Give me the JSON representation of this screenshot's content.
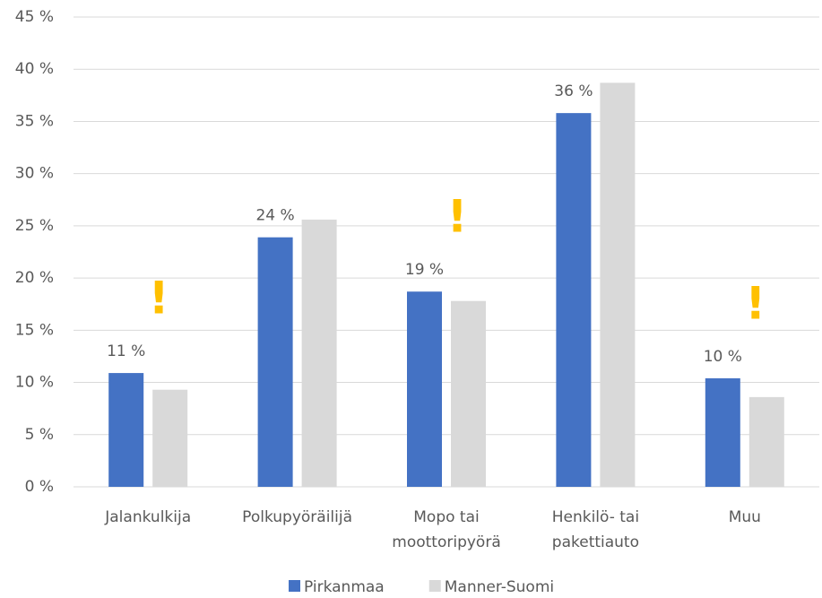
{
  "chart_data": {
    "type": "bar",
    "categories": [
      "Jalankulkija",
      "Polkupyöräilijä",
      "Mopo tai\nmoottoripyörä",
      "Henkilö- tai\npakettiauto",
      "Muu"
    ],
    "series": [
      {
        "name": "Pirkanmaa",
        "color": "#4472c4",
        "values": [
          10.9,
          23.9,
          18.7,
          35.8,
          10.4
        ],
        "value_labels": [
          "11 %",
          "24 %",
          "19 %",
          "36 %",
          "10 %"
        ]
      },
      {
        "name": "Manner-Suomi",
        "color": "#d9d9d9",
        "values": [
          9.3,
          25.6,
          17.8,
          38.7,
          8.6
        ]
      }
    ],
    "annotations": [
      "!",
      null,
      "!",
      null,
      "!"
    ],
    "annotation_color": "#ffc000",
    "ylim": [
      0,
      45
    ],
    "yticks": [
      {
        "value": 0,
        "label": "0 %"
      },
      {
        "value": 5,
        "label": "5 %"
      },
      {
        "value": 10,
        "label": "10 %"
      },
      {
        "value": 15,
        "label": "15 %"
      },
      {
        "value": 20,
        "label": "20 %"
      },
      {
        "value": 25,
        "label": "25 %"
      },
      {
        "value": 30,
        "label": "30 %"
      },
      {
        "value": 35,
        "label": "35 %"
      },
      {
        "value": 40,
        "label": "40 %"
      },
      {
        "value": 45,
        "label": "45 %"
      }
    ],
    "grid": true,
    "legend": "bottom"
  }
}
